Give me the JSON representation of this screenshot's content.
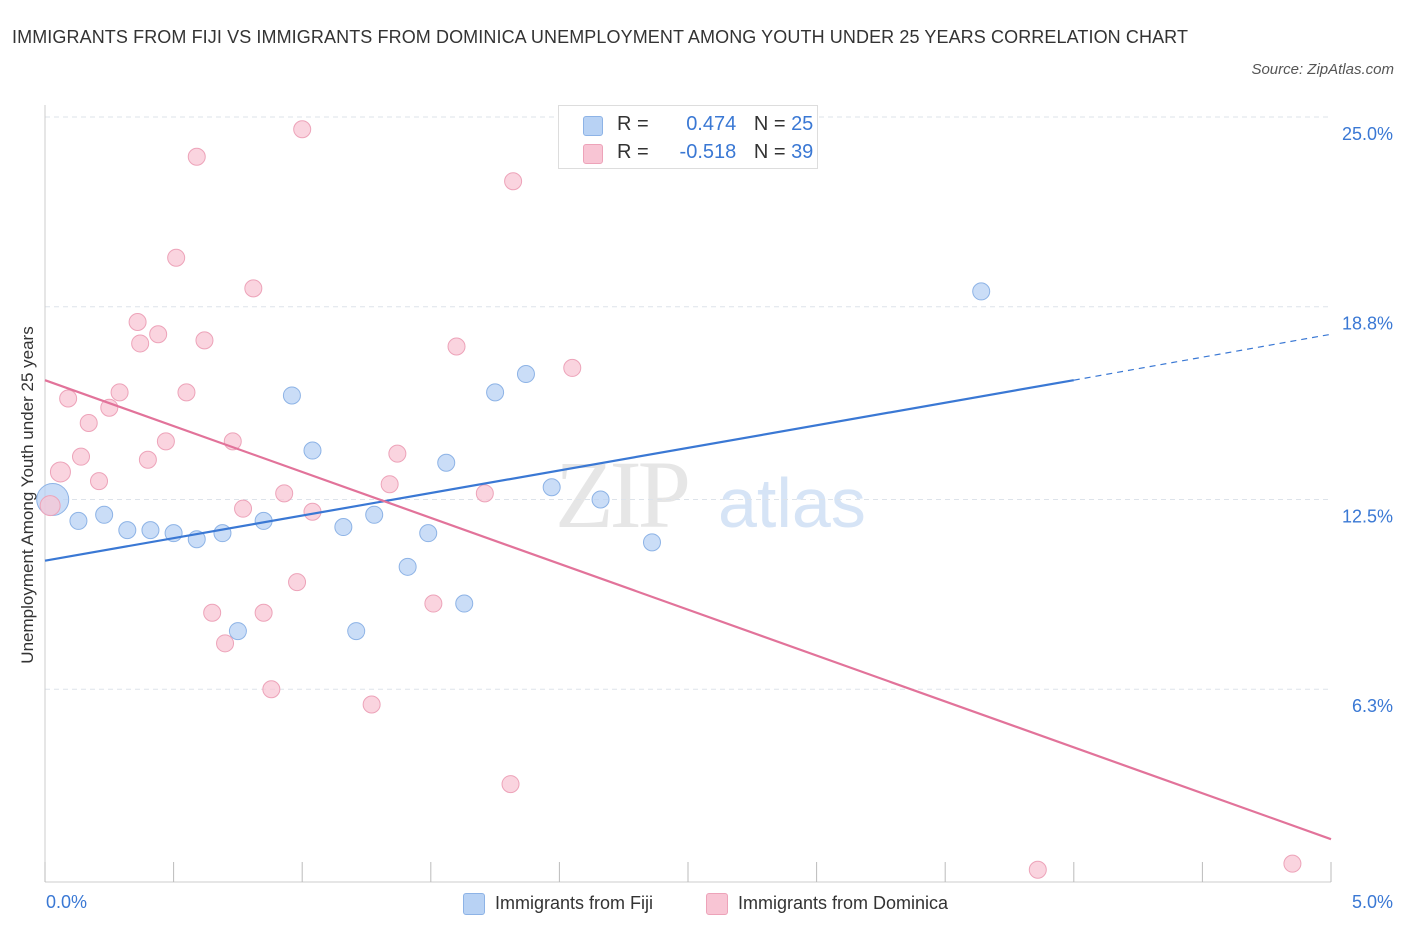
{
  "title": "IMMIGRANTS FROM FIJI VS IMMIGRANTS FROM DOMINICA UNEMPLOYMENT AMONG YOUTH UNDER 25 YEARS CORRELATION CHART",
  "source": "Source: ZipAtlas.com",
  "watermark": {
    "zip": "ZIP",
    "atlas": "atlas"
  },
  "legend_top": {
    "rows": [
      {
        "r_label": "R =",
        "r_value": "0.474",
        "n_label": "N =",
        "n_value": "25"
      },
      {
        "r_label": "R =",
        "r_value": "-0.518",
        "n_label": "N =",
        "n_value": "39"
      }
    ]
  },
  "legend_bottom": [
    "Immigrants from Fiji",
    "Immigrants from Dominica"
  ],
  "colors": {
    "fiji_fill": "#b8d2f4",
    "fiji_stroke": "#8db3e6",
    "fiji_line": "#3a78d4",
    "dominica_fill": "#f8c5d4",
    "dominica_stroke": "#eda3b9",
    "dominica_line": "#e2739a",
    "axis_text": "#3a78d4",
    "grid": "#dde3ea"
  },
  "chart_data": {
    "type": "scatter",
    "title": "IMMIGRANTS FROM FIJI VS IMMIGRANTS FROM DOMINICA UNEMPLOYMENT AMONG YOUTH UNDER 25 YEARS CORRELATION CHART",
    "xlabel": "",
    "ylabel": "Unemployment Among Youth under 25 years",
    "xlim": [
      0,
      5
    ],
    "ylim": [
      0,
      25
    ],
    "x_tick_labels": [
      "0.0%",
      "5.0%"
    ],
    "y_ticks": [
      6.3,
      12.5,
      18.8,
      25.0
    ],
    "y_tick_labels": [
      "6.3%",
      "12.5%",
      "18.8%",
      "25.0%"
    ],
    "grid": true,
    "legend_position": "top-center and bottom",
    "series": [
      {
        "name": "Immigrants from Fiji",
        "R": 0.474,
        "N": 25,
        "points": [
          [
            0.03,
            12.5
          ],
          [
            0.13,
            11.8
          ],
          [
            0.23,
            12.0
          ],
          [
            0.32,
            11.5
          ],
          [
            0.41,
            11.5
          ],
          [
            0.5,
            11.4
          ],
          [
            0.59,
            11.2
          ],
          [
            0.69,
            11.4
          ],
          [
            0.75,
            8.2
          ],
          [
            0.85,
            11.8
          ],
          [
            0.96,
            15.9
          ],
          [
            1.04,
            14.1
          ],
          [
            1.16,
            11.6
          ],
          [
            1.21,
            8.2
          ],
          [
            1.28,
            12.0
          ],
          [
            1.41,
            10.3
          ],
          [
            1.49,
            11.4
          ],
          [
            1.56,
            13.7
          ],
          [
            1.63,
            9.1
          ],
          [
            1.75,
            16.0
          ],
          [
            1.87,
            16.6
          ],
          [
            1.97,
            12.9
          ],
          [
            2.16,
            12.5
          ],
          [
            2.36,
            11.1
          ],
          [
            3.64,
            19.3
          ]
        ],
        "trend": {
          "x": [
            0,
            4.0
          ],
          "y": [
            10.5,
            16.4
          ],
          "dashed_to": [
            5.0,
            17.9
          ]
        }
      },
      {
        "name": "Immigrants from Dominica",
        "R": -0.518,
        "N": 39,
        "points": [
          [
            0.02,
            12.3
          ],
          [
            0.06,
            13.4
          ],
          [
            0.09,
            15.8
          ],
          [
            0.14,
            13.9
          ],
          [
            0.17,
            15.0
          ],
          [
            0.21,
            13.1
          ],
          [
            0.25,
            15.5
          ],
          [
            0.29,
            16.0
          ],
          [
            0.36,
            18.3
          ],
          [
            0.37,
            17.6
          ],
          [
            0.4,
            13.8
          ],
          [
            0.44,
            17.9
          ],
          [
            0.47,
            14.4
          ],
          [
            0.51,
            20.4
          ],
          [
            0.55,
            16.0
          ],
          [
            0.59,
            23.7
          ],
          [
            0.62,
            17.7
          ],
          [
            0.65,
            8.8
          ],
          [
            0.7,
            7.8
          ],
          [
            0.73,
            14.4
          ],
          [
            0.77,
            12.2
          ],
          [
            0.81,
            19.4
          ],
          [
            0.85,
            8.8
          ],
          [
            0.88,
            6.3
          ],
          [
            0.93,
            12.7
          ],
          [
            0.98,
            9.8
          ],
          [
            1.0,
            24.6
          ],
          [
            1.04,
            12.1
          ],
          [
            1.27,
            5.8
          ],
          [
            1.34,
            13.0
          ],
          [
            1.37,
            14.0
          ],
          [
            1.51,
            9.1
          ],
          [
            1.6,
            17.5
          ],
          [
            1.71,
            12.7
          ],
          [
            1.81,
            3.2
          ],
          [
            1.82,
            22.9
          ],
          [
            2.05,
            16.8
          ],
          [
            3.86,
            0.4
          ],
          [
            4.85,
            0.6
          ]
        ],
        "trend": {
          "x": [
            0,
            5.0
          ],
          "y": [
            16.4,
            1.4
          ]
        }
      }
    ]
  }
}
